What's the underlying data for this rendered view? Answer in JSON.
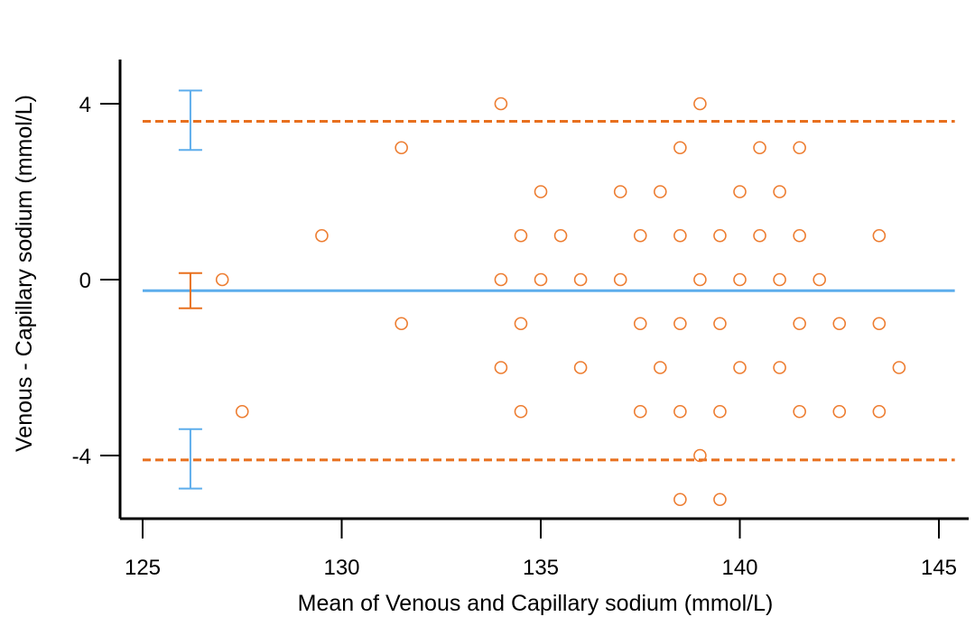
{
  "chart_data": {
    "type": "scatter",
    "title": "",
    "xlabel": "Mean of Venous and Capillary sodium (mmol/L)",
    "ylabel": "Venous - Capillary sodium (mmol/L)",
    "xlim": [
      124.5,
      145.5
    ],
    "ylim": [
      -5.5,
      5.0
    ],
    "x_ticks": [
      125,
      130,
      135,
      140,
      145
    ],
    "y_ticks": [
      -4,
      0,
      4
    ],
    "grid": false,
    "colors": {
      "points": "#ED7D31",
      "mean_line": "#5DADEC",
      "limits_line": "#E8701E",
      "axis": "#000000"
    },
    "points": [
      [
        127,
        0
      ],
      [
        127.5,
        -3
      ],
      [
        129.5,
        1
      ],
      [
        131.5,
        3
      ],
      [
        131.5,
        -1
      ],
      [
        134,
        4
      ],
      [
        134,
        0
      ],
      [
        134,
        -2
      ],
      [
        134.5,
        1
      ],
      [
        134.5,
        -1
      ],
      [
        134.5,
        -3
      ],
      [
        135,
        2
      ],
      [
        135,
        0
      ],
      [
        135.5,
        1
      ],
      [
        136,
        0
      ],
      [
        136,
        -2
      ],
      [
        137,
        2
      ],
      [
        137,
        0
      ],
      [
        137.5,
        1
      ],
      [
        137.5,
        -1
      ],
      [
        137.5,
        -3
      ],
      [
        138,
        2
      ],
      [
        138,
        -2
      ],
      [
        138.5,
        3
      ],
      [
        138.5,
        1
      ],
      [
        138.5,
        -1
      ],
      [
        138.5,
        -3
      ],
      [
        138.5,
        -5
      ],
      [
        139,
        4
      ],
      [
        139,
        0
      ],
      [
        139,
        -4
      ],
      [
        139.5,
        1
      ],
      [
        139.5,
        -1
      ],
      [
        139.5,
        -3
      ],
      [
        139.5,
        -5
      ],
      [
        140,
        2
      ],
      [
        140,
        0
      ],
      [
        140,
        -2
      ],
      [
        140.5,
        3
      ],
      [
        140.5,
        1
      ],
      [
        141,
        2
      ],
      [
        141,
        0
      ],
      [
        141,
        -2
      ],
      [
        141.5,
        3
      ],
      [
        141.5,
        1
      ],
      [
        141.5,
        -1
      ],
      [
        141.5,
        -3
      ],
      [
        142,
        0
      ],
      [
        142.5,
        -1
      ],
      [
        142.5,
        -3
      ],
      [
        143.5,
        1
      ],
      [
        143.5,
        -1
      ],
      [
        143.5,
        -3
      ],
      [
        144,
        -2
      ]
    ],
    "mean_difference": -0.25,
    "upper_limit": 3.6,
    "lower_limit": -4.1,
    "ci_x": 126.2,
    "upper_limit_ci": [
      2.95,
      4.3
    ],
    "mean_ci": [
      -0.65,
      0.15
    ],
    "lower_limit_ci": [
      -4.75,
      -3.4
    ]
  }
}
